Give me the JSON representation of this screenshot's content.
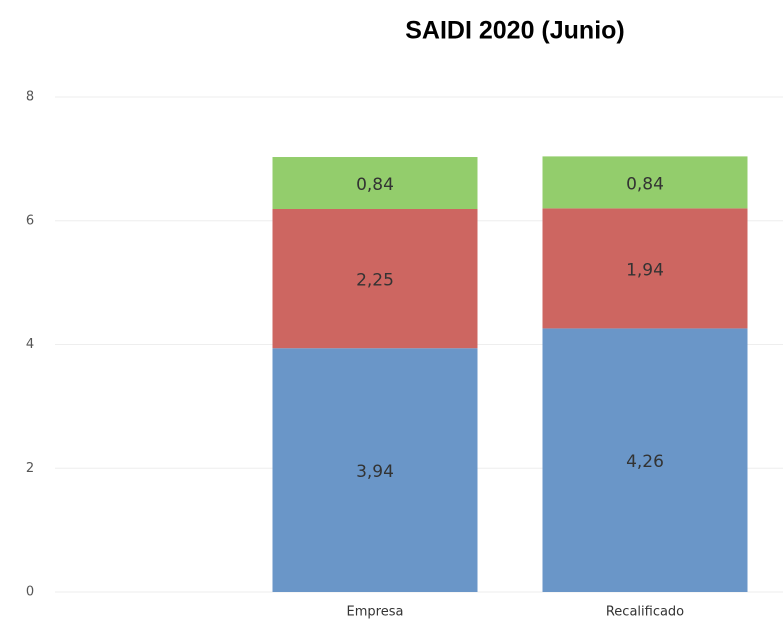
{
  "chart_data": {
    "type": "stacked_bar",
    "title": "SAIDI 2020 (Junio)",
    "categories": [
      "Empresa",
      "Recalificado"
    ],
    "series": [
      {
        "color": "#6a96c8",
        "values": [
          3.94,
          4.26
        ],
        "value_labels": [
          "3,94",
          "4,26"
        ]
      },
      {
        "color": "#cd6661",
        "values": [
          2.25,
          1.94
        ],
        "value_labels": [
          "2,25",
          "1,94"
        ]
      },
      {
        "color": "#93cd6c",
        "values": [
          0.84,
          0.84
        ],
        "value_labels": [
          "0,84",
          "0,84"
        ]
      }
    ],
    "ylim": [
      0,
      8
    ],
    "yticks": [
      0,
      2,
      4,
      6,
      8
    ],
    "grid": true
  }
}
